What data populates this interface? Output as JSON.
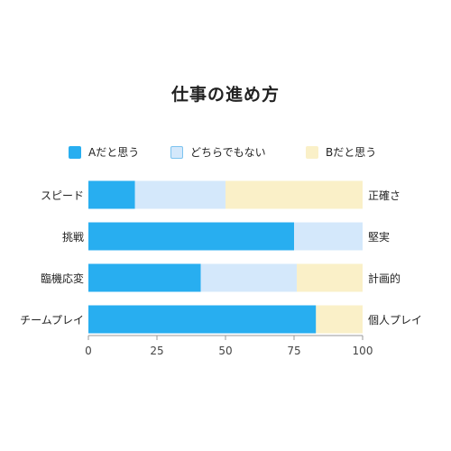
{
  "title": "仕事の進め方",
  "legend": [
    {
      "label": "Aだと思う",
      "color": "#28aef0",
      "border": "#28aef0"
    },
    {
      "label": "どちらでもない",
      "color": "#d4e8fb",
      "border": "#7cc3ef"
    },
    {
      "label": "Bだと思う",
      "color": "#faf0c8",
      "border": "#faf0c8"
    }
  ],
  "chart_data": {
    "type": "bar",
    "orientation": "horizontal",
    "stacked": true,
    "title": "仕事の進め方",
    "categories": [
      "スピード",
      "挑戦",
      "臨機応変",
      "チームプレイ"
    ],
    "categories_right": [
      "正確さ",
      "堅実",
      "計画的",
      "個人プレイ"
    ],
    "series": [
      {
        "name": "Aだと思う",
        "color": "#28aef0",
        "values": [
          17,
          75,
          41,
          83
        ]
      },
      {
        "name": "どちらでもない",
        "color": "#d4e8fb",
        "values": [
          33,
          25,
          35,
          0
        ]
      },
      {
        "name": "Bだと思う",
        "color": "#faf0c8",
        "values": [
          50,
          0,
          24,
          17
        ]
      }
    ],
    "xlim": [
      0,
      100
    ],
    "xticks": [
      0,
      25,
      50,
      75,
      100
    ],
    "legend_position": "top",
    "grid": false
  }
}
